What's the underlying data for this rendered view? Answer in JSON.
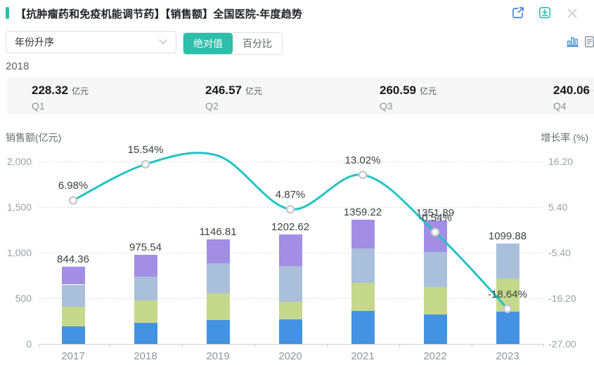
{
  "header": {
    "title": "【抗肿瘤药和免疫机能调节药】【销售额】全国医院-年度趋势",
    "accent_color": "#2cbfa9",
    "icons": [
      "share-icon",
      "download-icon",
      "close-icon"
    ]
  },
  "controls": {
    "sort_select": {
      "value": "年份升序"
    },
    "mode_toggle": {
      "options": [
        "绝对值",
        "百分比"
      ],
      "selected_index": 0
    },
    "view_icons": [
      "bar-chart-icon",
      "report-icon"
    ]
  },
  "year_label": "2018",
  "quarter_cards": [
    {
      "label": "Q1",
      "value": "228.32",
      "unit": "亿元"
    },
    {
      "label": "Q2",
      "value": "246.57",
      "unit": "亿元"
    },
    {
      "label": "Q3",
      "value": "260.59",
      "unit": "亿元"
    },
    {
      "label": "Q4",
      "value": "240.06",
      "unit": "亿元",
      "clipped_by_viewport": true
    }
  ],
  "chart_data": {
    "type": "combo",
    "subtype": "stacked-bar + smooth-line",
    "categories": [
      "2017",
      "2018",
      "2019",
      "2020",
      "2021",
      "2022",
      "2023"
    ],
    "bar_totals": [
      844.36,
      975.54,
      1146.81,
      1202.62,
      1359.22,
      1351.89,
      1099.88
    ],
    "bar_total_labels": [
      "844.36",
      "975.54",
      "1146.81",
      "1202.62",
      "1359.22",
      "1351.89",
      "1099.88"
    ],
    "stacked_bar_series": [
      {
        "name": "Q1",
        "color": "#4493e2",
        "values": [
          189.0,
          228.32,
          262.6,
          267.0,
          358.8,
          321.8,
          353.1
        ]
      },
      {
        "name": "Q2",
        "color": "#c6d88b",
        "values": [
          219.0,
          246.57,
          294.7,
          194.8,
          308.5,
          301.5,
          365.5
        ]
      },
      {
        "name": "Q3",
        "color": "#a9bfda",
        "values": [
          242.0,
          260.59,
          329.1,
          394.5,
          381.9,
          385.3,
          381.3
        ]
      },
      {
        "name": "Q4",
        "color": "#a28ee4",
        "values": [
          194.4,
          240.06,
          260.4,
          346.3,
          310.0,
          343.3,
          0
        ]
      }
    ],
    "line_series": {
      "name": "增长率",
      "color": "#22c3c3",
      "values": [
        6.98,
        15.54,
        17.56,
        4.87,
        13.02,
        -0.54,
        -18.64
      ],
      "labels": [
        "6.98%",
        "15.54%",
        null,
        "4.87%",
        "13.02%",
        "-0.54%",
        "-18.64%"
      ],
      "marker_visible": [
        true,
        true,
        false,
        true,
        true,
        true,
        true
      ]
    },
    "left_axis": {
      "title": "销售额(亿元)",
      "tick_values": [
        0,
        500,
        1000,
        1500,
        2000
      ],
      "tick_labels": [
        "0",
        "500",
        "1,000",
        "1,500",
        "2,000"
      ],
      "min": 0,
      "max": 2000
    },
    "right_axis": {
      "title": "增长率 (%)",
      "tick_values": [
        -27,
        -16.2,
        -5.4,
        5.4,
        16.2
      ],
      "tick_labels": [
        "-27.00",
        "-16.20",
        "-5.40",
        "5.40",
        "16.20"
      ],
      "min": -27,
      "max": 16.2
    },
    "grid": "horizontal dashed",
    "notes": "2018 quarter values shown in cards above; quarter splits of other years estimated from bar pixels; 2019 growth point (~17.56%) exceeds the right-axis max so no marker/label is rendered for it; 2022 total label and growth label overlap in the original"
  },
  "marker_style": {
    "fill": "#ffffff",
    "stroke": "#c8cacc"
  }
}
